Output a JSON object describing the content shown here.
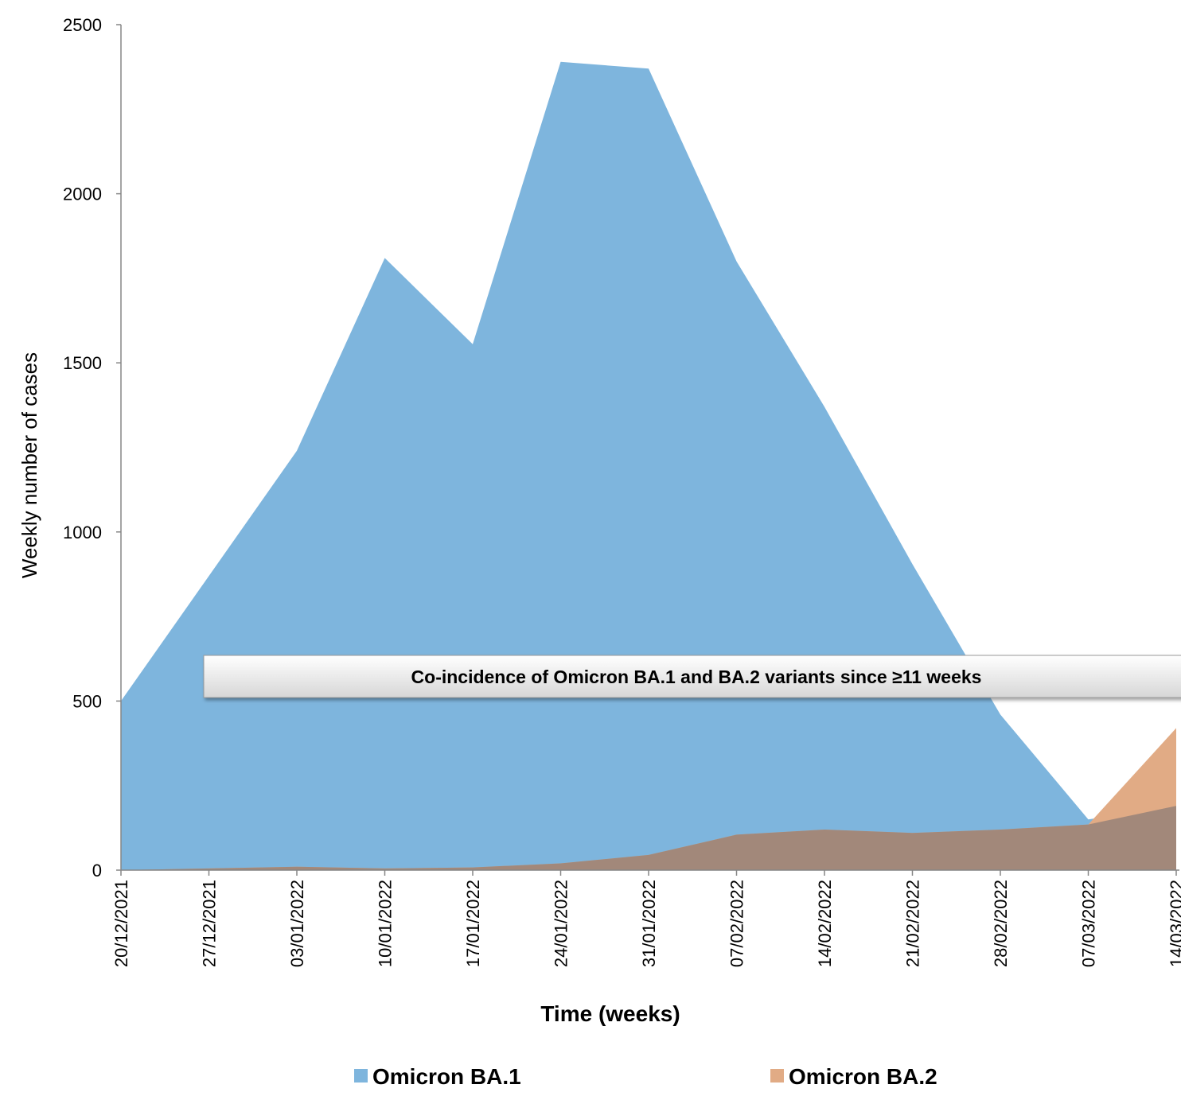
{
  "chart_data": {
    "type": "area",
    "xlabel": "Time (weeks)",
    "ylabel": "Weekly number of cases",
    "ylim": [
      0,
      2500
    ],
    "yticks": [
      0,
      500,
      1000,
      1500,
      2000,
      2500
    ],
    "grid": false,
    "legend_position": "bottom",
    "categories": [
      "20/12/2021",
      "27/12/2021",
      "03/01/2022",
      "10/01/2022",
      "17/01/2022",
      "24/01/2022",
      "31/01/2022",
      "07/02/2022",
      "14/02/2022",
      "21/02/2022",
      "28/02/2022",
      "07/03/2022",
      "14/03/2022"
    ],
    "series": [
      {
        "name": "Omicron BA.1",
        "color": "#7eb5dd",
        "values": [
          500,
          870,
          1240,
          1810,
          1555,
          2390,
          2370,
          1800,
          1370,
          905,
          460,
          150,
          190
        ]
      },
      {
        "name": "Omicron BA.2",
        "color": "#e1ab85",
        "values": [
          0,
          5,
          10,
          5,
          8,
          20,
          45,
          105,
          120,
          110,
          120,
          135,
          420
        ]
      }
    ],
    "overlap_color": "#a2887a",
    "annotation": "Co-incidence of Omicron BA.1 and BA.2 variants since ≥11 weeks"
  }
}
